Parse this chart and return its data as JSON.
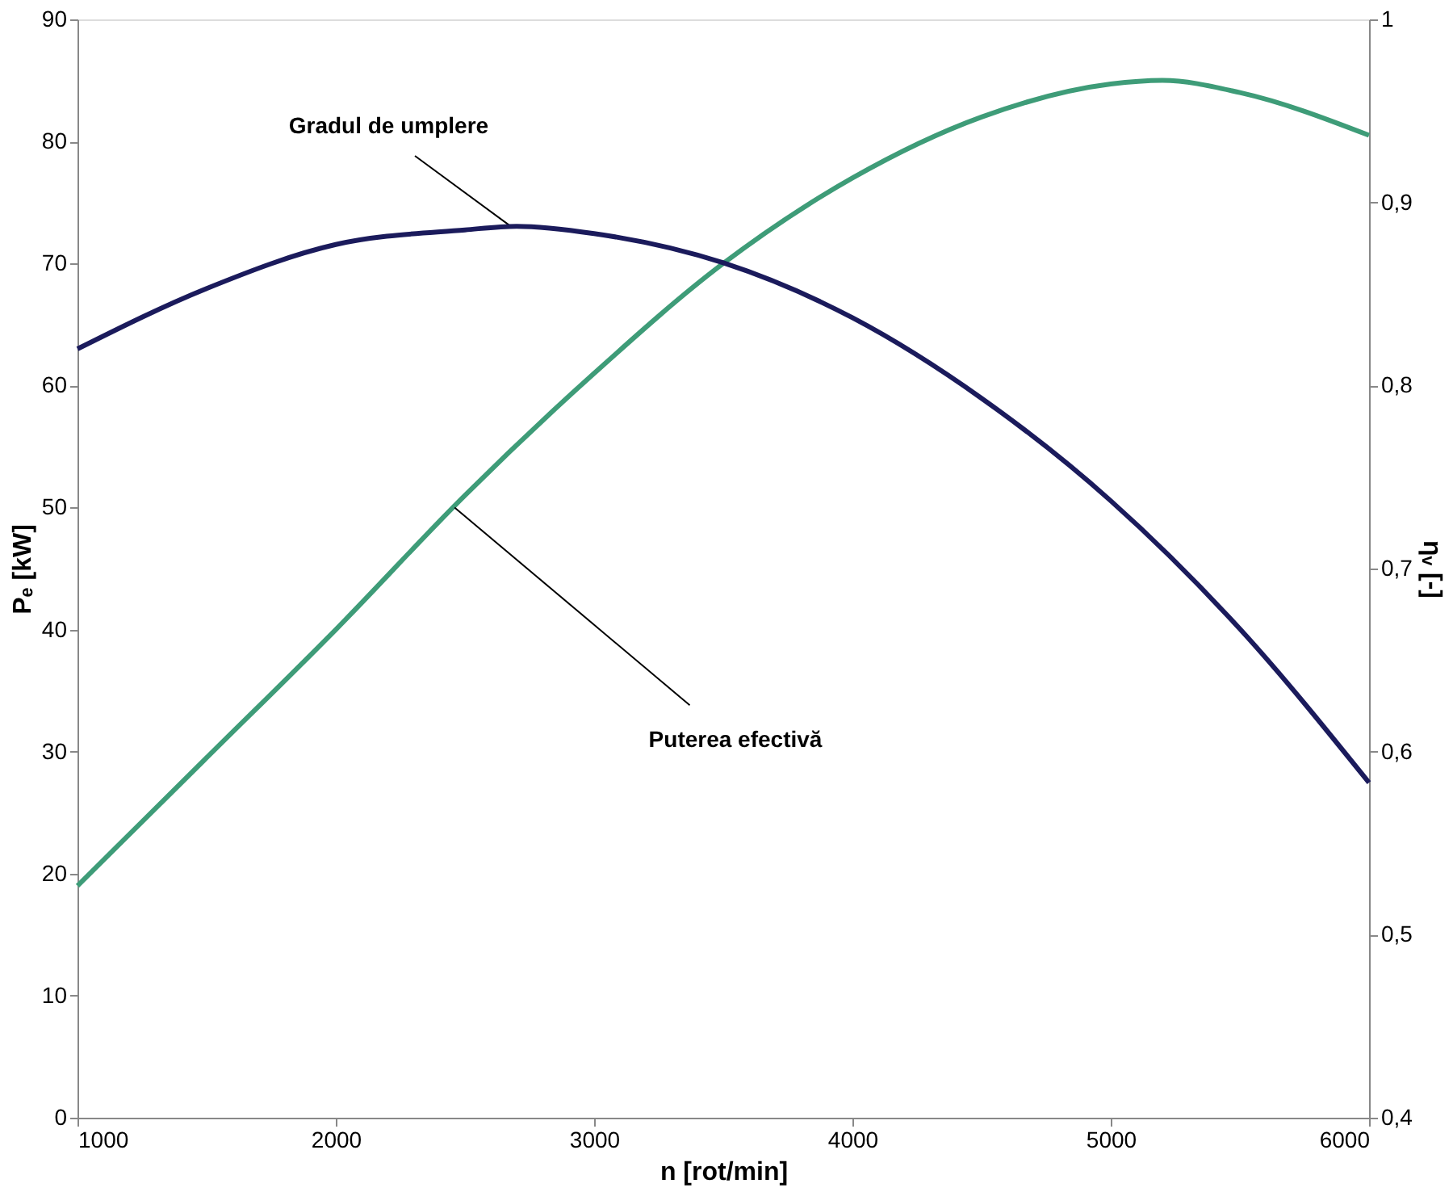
{
  "chart_data": {
    "type": "line",
    "xlabel": "n [rot/min]",
    "ylabel": "Pₑ [kW]",
    "y2label": "ηᵥ [-]",
    "xlim": [
      1000,
      6000
    ],
    "xticks": [
      1000,
      2000,
      3000,
      4000,
      5000,
      6000
    ],
    "ylim": [
      0,
      90
    ],
    "yticks": [
      0,
      10,
      20,
      30,
      40,
      50,
      60,
      70,
      80,
      90
    ],
    "y2lim": [
      0.4,
      1
    ],
    "y2ticks": [
      {
        "value": 0.4,
        "label": "0,4"
      },
      {
        "value": 0.5,
        "label": "0,5"
      },
      {
        "value": 0.6,
        "label": "0,6"
      },
      {
        "value": 0.7,
        "label": "0,7"
      },
      {
        "value": 0.8,
        "label": "0,8"
      },
      {
        "value": 0.9,
        "label": "0,9"
      },
      {
        "value": 1,
        "label": "1"
      }
    ],
    "grid": false,
    "marker": "none",
    "line_style": "solid",
    "series": [
      {
        "color": "#3e9c78",
        "x": [
          1000,
          1500,
          2000,
          2500,
          3000,
          3500,
          4000,
          4500,
          5000,
          5200,
          5500,
          6000
        ],
        "values": [
          19,
          29.5,
          40,
          51,
          61,
          70,
          77,
          82,
          84.7,
          85,
          84,
          80.5
        ]
      },
      {
        "color": "#1b1b5c",
        "axis": "y2",
        "x": [
          1000,
          1500,
          2000,
          2500,
          2700,
          3000,
          3500,
          4000,
          4500,
          5000,
          5500,
          6000
        ],
        "values": [
          0.82,
          0.853,
          0.877,
          0.885,
          0.887,
          0.883,
          0.867,
          0.837,
          0.793,
          0.737,
          0.667,
          0.583
        ]
      }
    ],
    "annotations": [
      {
        "text": "Gradul de umplere",
        "x": 2680,
        "y": 73
      },
      {
        "text": "Puterea efectivă",
        "x": 2460,
        "y": 50
      }
    ]
  }
}
